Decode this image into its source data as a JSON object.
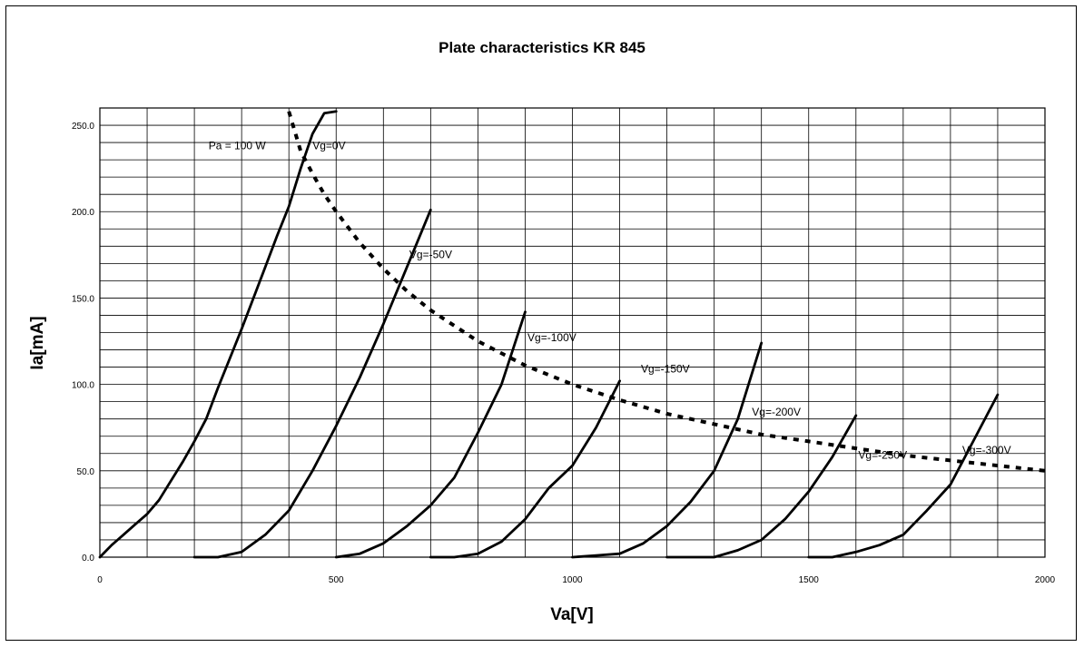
{
  "chart_data": {
    "type": "line",
    "title": "Plate characteristics KR 845",
    "xlabel": "Va[V]",
    "ylabel": "Ia[mA]",
    "xlim": [
      0,
      2000
    ],
    "ylim": [
      0,
      260
    ],
    "x_ticks": [
      0,
      500,
      1000,
      1500,
      2000
    ],
    "x_tick_labels": [
      "0",
      "500",
      "1000",
      "1500",
      "2000"
    ],
    "y_ticks": [
      0,
      50,
      100,
      150,
      200,
      250
    ],
    "y_tick_labels": [
      "0.0",
      "50.0",
      "100.0",
      "150.0",
      "200.0",
      "250.0"
    ],
    "grid": true,
    "series": [
      {
        "name": "Vg=0V",
        "points": [
          [
            0,
            0
          ],
          [
            25,
            7
          ],
          [
            50,
            13
          ],
          [
            75,
            19
          ],
          [
            100,
            25
          ],
          [
            125,
            33
          ],
          [
            150,
            44
          ],
          [
            175,
            55
          ],
          [
            200,
            67
          ],
          [
            225,
            80
          ],
          [
            250,
            98
          ],
          [
            275,
            115
          ],
          [
            300,
            132
          ],
          [
            325,
            150
          ],
          [
            350,
            168
          ],
          [
            375,
            186
          ],
          [
            400,
            203
          ],
          [
            425,
            225
          ],
          [
            450,
            245
          ],
          [
            475,
            257
          ],
          [
            500,
            258
          ]
        ]
      },
      {
        "name": "Vg=-50V",
        "points": [
          [
            200,
            0
          ],
          [
            250,
            0
          ],
          [
            300,
            3
          ],
          [
            350,
            13
          ],
          [
            400,
            27
          ],
          [
            450,
            50
          ],
          [
            500,
            76
          ],
          [
            550,
            104
          ],
          [
            600,
            135
          ],
          [
            650,
            168
          ],
          [
            700,
            201
          ]
        ]
      },
      {
        "name": "Vg=-100V",
        "points": [
          [
            500,
            0
          ],
          [
            550,
            2
          ],
          [
            600,
            8
          ],
          [
            650,
            18
          ],
          [
            700,
            30
          ],
          [
            750,
            46
          ],
          [
            800,
            72
          ],
          [
            850,
            100
          ],
          [
            900,
            142
          ]
        ]
      },
      {
        "name": "Vg=-150V",
        "points": [
          [
            700,
            0
          ],
          [
            750,
            0
          ],
          [
            800,
            2
          ],
          [
            850,
            9
          ],
          [
            900,
            22
          ],
          [
            950,
            40
          ],
          [
            1000,
            53
          ],
          [
            1050,
            75
          ],
          [
            1100,
            102
          ]
        ]
      },
      {
        "name": "Vg=-200V",
        "points": [
          [
            1000,
            0
          ],
          [
            1050,
            1
          ],
          [
            1100,
            2
          ],
          [
            1150,
            8
          ],
          [
            1200,
            18
          ],
          [
            1250,
            32
          ],
          [
            1300,
            50
          ],
          [
            1350,
            80
          ],
          [
            1400,
            124
          ]
        ]
      },
      {
        "name": "Vg=-250V",
        "points": [
          [
            1200,
            0
          ],
          [
            1250,
            0
          ],
          [
            1300,
            0
          ],
          [
            1350,
            4
          ],
          [
            1400,
            10
          ],
          [
            1450,
            22
          ],
          [
            1500,
            38
          ],
          [
            1550,
            58
          ],
          [
            1600,
            82
          ]
        ]
      },
      {
        "name": "Vg=-300V",
        "points": [
          [
            1500,
            0
          ],
          [
            1550,
            0
          ],
          [
            1600,
            3
          ],
          [
            1650,
            7
          ],
          [
            1700,
            13
          ],
          [
            1750,
            27
          ],
          [
            1800,
            42
          ],
          [
            1850,
            68
          ],
          [
            1900,
            94
          ]
        ]
      }
    ],
    "power_curve": {
      "label": "Pa = 100 W",
      "points": [
        [
          400,
          258
        ],
        [
          425,
          235
        ],
        [
          450,
          222
        ],
        [
          475,
          210
        ],
        [
          500,
          200
        ],
        [
          550,
          182
        ],
        [
          600,
          167
        ],
        [
          650,
          154
        ],
        [
          700,
          143
        ],
        [
          800,
          125
        ],
        [
          900,
          111
        ],
        [
          1000,
          100
        ],
        [
          1100,
          91
        ],
        [
          1200,
          83
        ],
        [
          1300,
          77
        ],
        [
          1400,
          71
        ],
        [
          1500,
          67
        ],
        [
          1600,
          63
        ],
        [
          1700,
          59
        ],
        [
          1800,
          56
        ],
        [
          1900,
          53
        ],
        [
          2000,
          50
        ]
      ]
    },
    "annotations": [
      {
        "text": "Pa = 100 W",
        "x": 230,
        "y": 236
      },
      {
        "text": "Vg=0V",
        "x": 450,
        "y": 236
      },
      {
        "text": "Vg=-50V",
        "x": 655,
        "y": 173
      },
      {
        "text": "Vg=-100V",
        "x": 905,
        "y": 125
      },
      {
        "text": "Vg=-150V",
        "x": 1145,
        "y": 107
      },
      {
        "text": "Vg=-200V",
        "x": 1380,
        "y": 82
      },
      {
        "text": "Vg=-250V",
        "x": 1605,
        "y": 57
      },
      {
        "text": "Vg=-300V",
        "x": 1825,
        "y": 60
      }
    ]
  }
}
